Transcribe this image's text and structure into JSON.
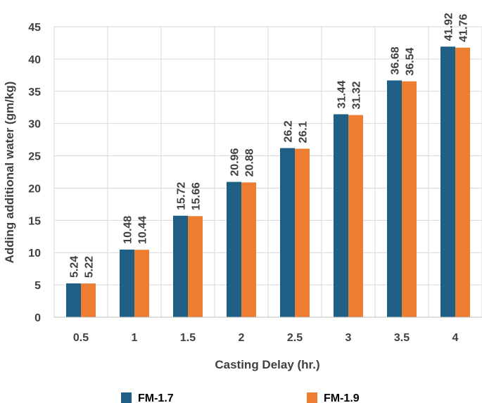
{
  "chart_data": {
    "type": "bar",
    "categories": [
      "0.5",
      "1",
      "1.5",
      "2",
      "2.5",
      "3",
      "3.5",
      "4"
    ],
    "series": [
      {
        "name": "FM-1.7",
        "color": "#1f5f86",
        "values": [
          5.24,
          10.48,
          15.72,
          20.96,
          26.2,
          31.44,
          36.68,
          41.92
        ],
        "labels": [
          "5.24",
          "10.48",
          "15.72",
          "20.96",
          "26.2",
          "31.44",
          "36.68",
          "41.92"
        ]
      },
      {
        "name": "FM-1.9",
        "color": "#ed7d31",
        "values": [
          5.22,
          10.44,
          15.66,
          20.88,
          26.1,
          31.32,
          36.54,
          41.76
        ],
        "labels": [
          "5.22",
          "10.44",
          "15.66",
          "20.88",
          "26.1",
          "31.32",
          "36.54",
          "41.76"
        ]
      }
    ],
    "xlabel": "Casting Delay (hr.)",
    "ylabel": "Adding additional water (gm/kg)",
    "ylim": [
      0,
      45
    ],
    "yticks": [
      "0",
      "5",
      "10",
      "15",
      "20",
      "25",
      "30",
      "35",
      "40",
      "45"
    ],
    "grid": true,
    "legend_position": "bottom"
  }
}
